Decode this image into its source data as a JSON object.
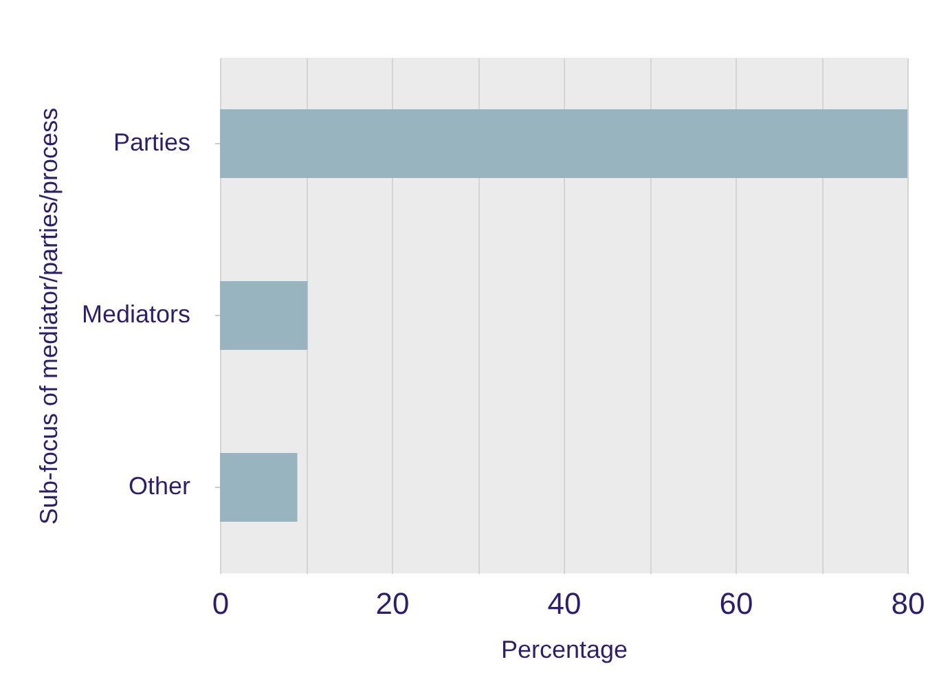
{
  "chart_data": {
    "type": "bar",
    "orientation": "horizontal",
    "categories": [
      "Parties",
      "Mediators",
      "Other"
    ],
    "values": [
      80,
      10.2,
      9.0
    ],
    "color": "#97b4bf",
    "xlabel": "Percentage",
    "ylabel": "Sub-focus of mediator/parties/process",
    "xlim": [
      0,
      80
    ],
    "xticks": [
      0,
      {
        "value": 10,
        "label": null
      },
      20,
      {
        "value": 30,
        "label": null
      },
      40,
      {
        "value": 50,
        "label": null
      },
      60,
      {
        "value": 70,
        "label": null
      },
      80
    ],
    "grid": "x"
  }
}
